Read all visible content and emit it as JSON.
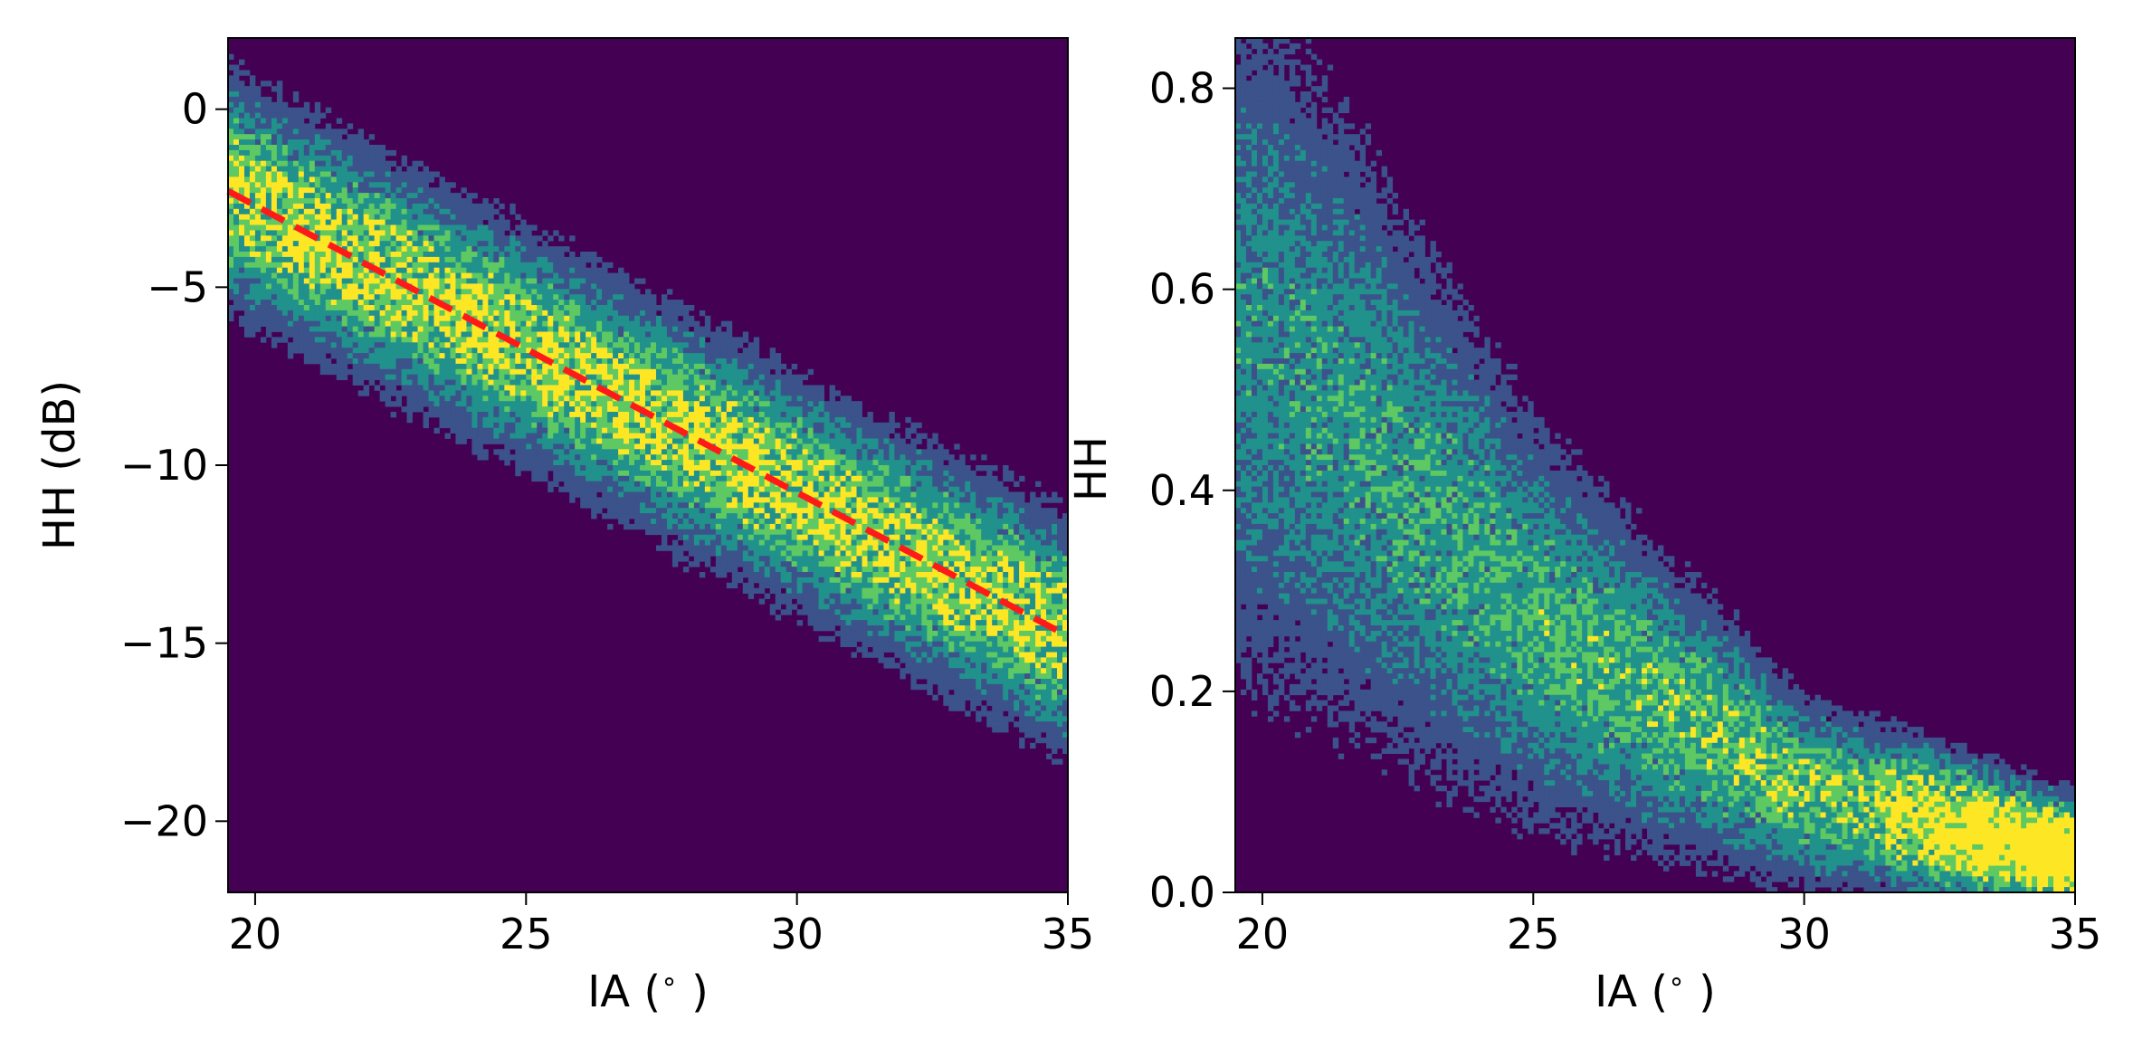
{
  "colors": {
    "background": "#440154",
    "low": "#3b528b",
    "mid": "#21918c",
    "high": "#5ec962",
    "peak": "#fde725",
    "fit_line": "#ff1a1a"
  },
  "chart_data": [
    {
      "type": "heatmap",
      "xlabel": "IA ($^\\circ$)",
      "ylabel": "HH (dB)",
      "xlim": [
        19.5,
        35
      ],
      "ylim": [
        -22,
        2
      ],
      "x_ticks": [
        20,
        25,
        30,
        35
      ],
      "y_ticks": [
        0,
        -5,
        -10,
        -15,
        -20
      ],
      "x_tick_labels": [
        "20",
        "25",
        "30",
        "35"
      ],
      "y_tick_labels": [
        "0",
        "−5",
        "−10",
        "−15",
        "−20"
      ],
      "density": {
        "model": "linear",
        "center_at_x": [
          [
            19.5,
            -2.3
          ],
          [
            35,
            -14.8
          ]
        ],
        "spread_sd": 1.9,
        "peak_x_range": [
          19.5,
          35
        ]
      },
      "fit_line": {
        "style": "dashed",
        "points": [
          [
            19.5,
            -2.3
          ],
          [
            35,
            -14.8
          ]
        ]
      },
      "grid": false,
      "legend": "none"
    },
    {
      "type": "heatmap",
      "xlabel": "IA ($^\\circ$)",
      "ylabel": "HH",
      "xlim": [
        19.5,
        35
      ],
      "ylim": [
        0,
        0.85
      ],
      "x_ticks": [
        20,
        25,
        30,
        35
      ],
      "y_ticks": [
        0.0,
        0.2,
        0.4,
        0.6,
        0.8
      ],
      "x_tick_labels": [
        "20",
        "25",
        "30",
        "35"
      ],
      "y_tick_labels": [
        "0.0",
        "0.2",
        "0.4",
        "0.6",
        "0.8"
      ],
      "density": {
        "model": "exponential-decay",
        "center_at_x": [
          [
            20,
            0.55
          ],
          [
            25,
            0.27
          ],
          [
            30,
            0.1
          ],
          [
            35,
            0.035
          ]
        ],
        "peak_x_range": [
          32,
          35
        ],
        "peak_y": 0.04
      },
      "grid": false,
      "legend": "none"
    }
  ]
}
